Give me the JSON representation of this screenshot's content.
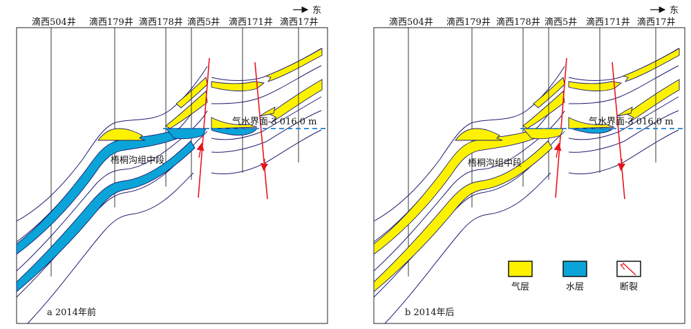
{
  "direction_label": "东",
  "wells": [
    "滴西504井",
    "滴西179井",
    "滴西178井",
    "滴西5井",
    "滴西171井",
    "滴西17井"
  ],
  "formation_label": "梧桐沟组中段",
  "gas_water_contact_label": "气水界面-3 016.0 m",
  "panels": [
    {
      "caption": "a 2014年前"
    },
    {
      "caption": "b 2014年后"
    }
  ],
  "legend": {
    "gas": "气层",
    "water": "水层",
    "fault": "断裂"
  },
  "colors": {
    "gas": "#fcf200",
    "water": "#0aa4d8",
    "boundary": "#1d1b6e",
    "fault": "#e8141c",
    "contact": "#1a7fd0"
  }
}
